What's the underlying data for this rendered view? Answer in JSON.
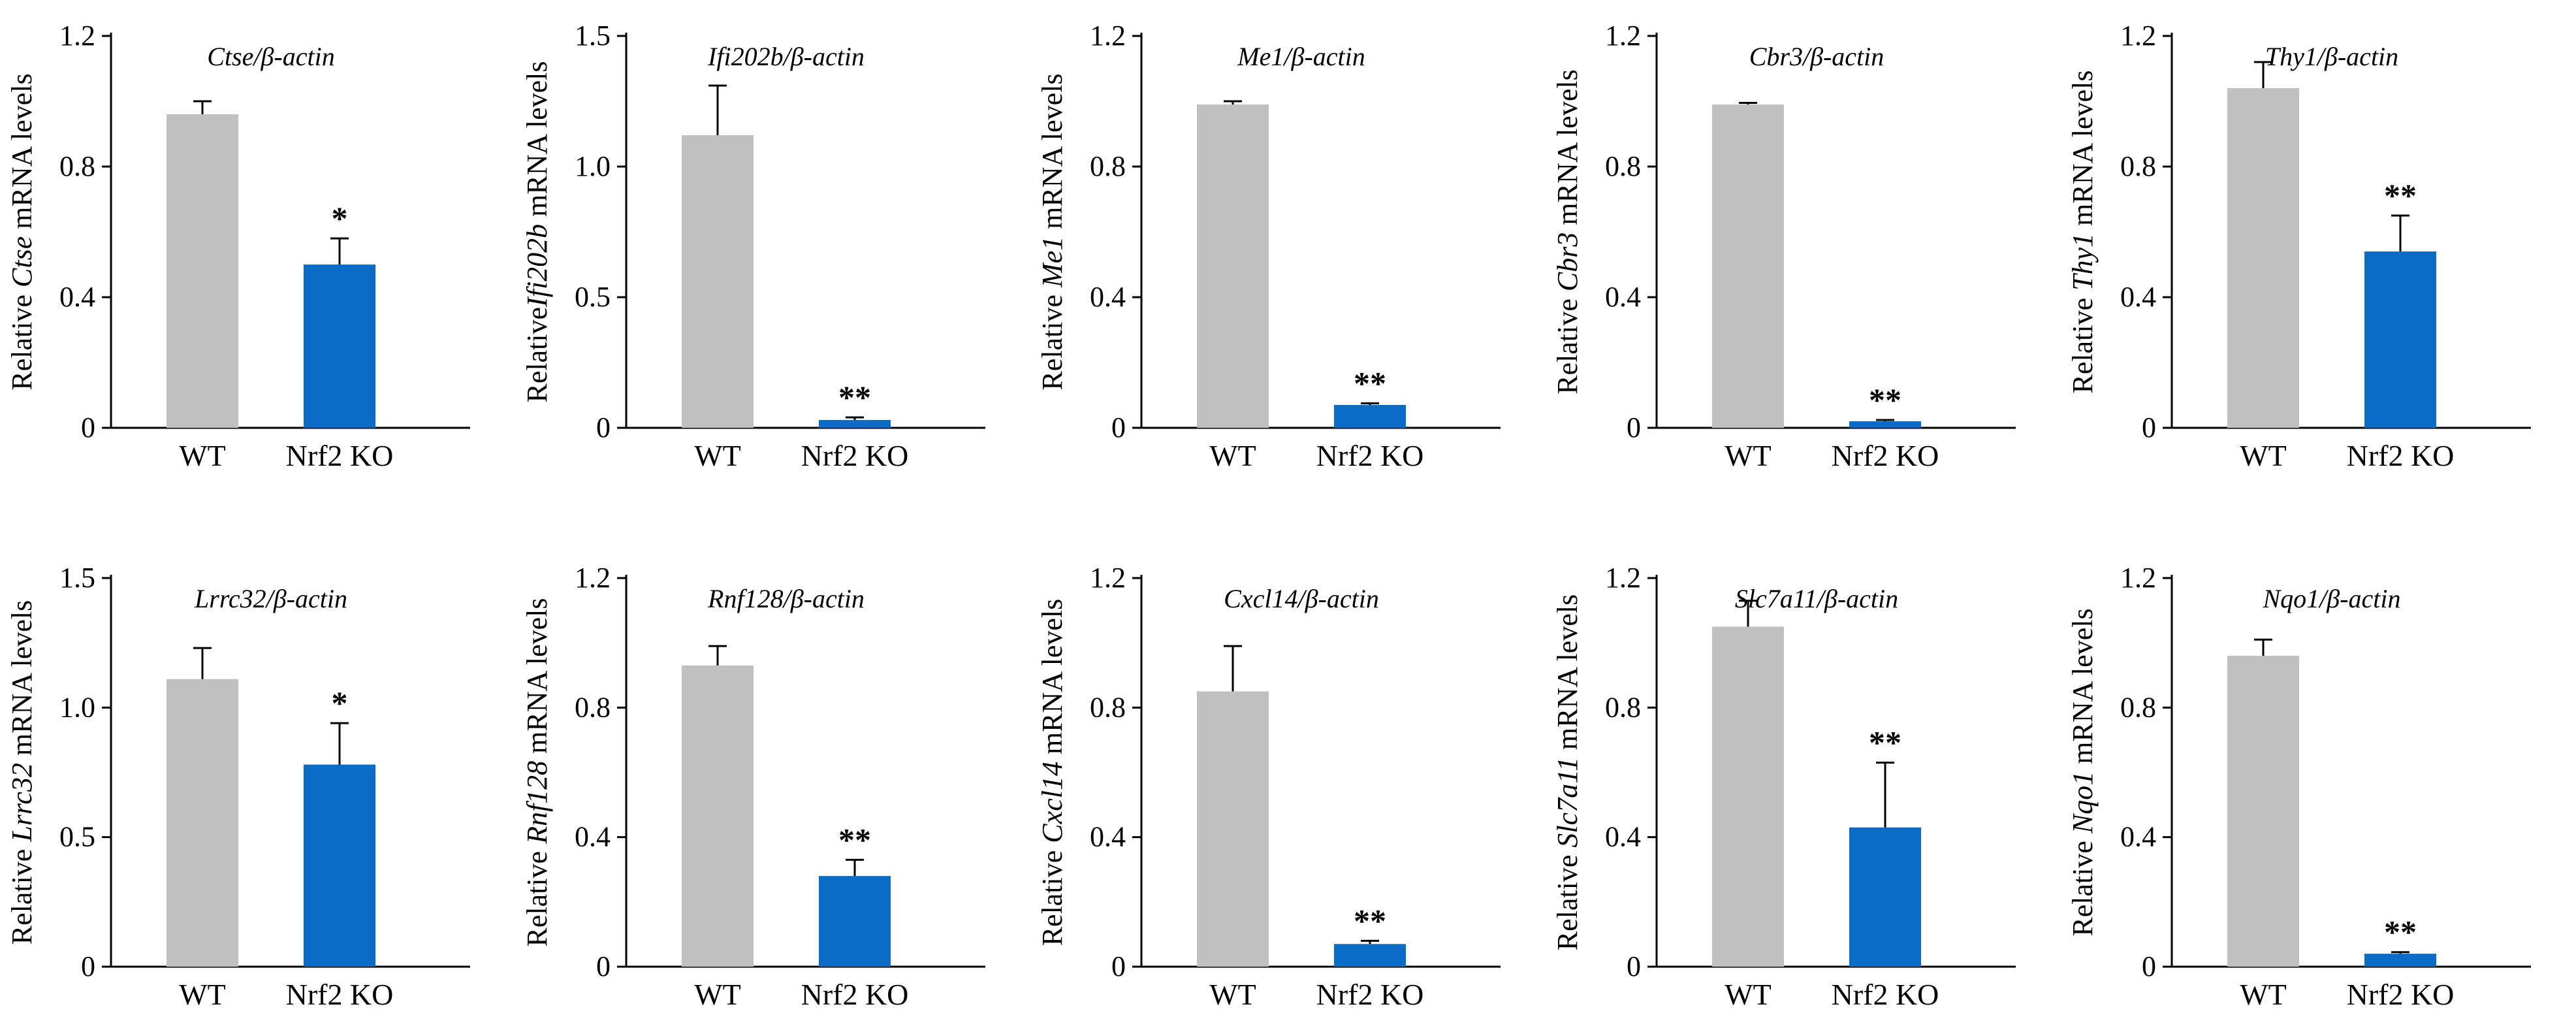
{
  "figure": {
    "colors": {
      "wt": "#c0c0c0",
      "ko": "#0a6cc4",
      "axis": "#000000"
    },
    "charts_grid": {
      "rows": 2,
      "cols": 5
    }
  },
  "chart_data": [
    {
      "type": "bar",
      "title_gene": "Ctse",
      "title_suffix": "/β-actin",
      "ylabel_prefix": "Relative ",
      "ylabel_gene": "Ctse",
      "ylabel_suffix": " mRNA levels",
      "categories": [
        "WT",
        "Nrf2 KO"
      ],
      "values": [
        0.96,
        0.5
      ],
      "errors": [
        0.04,
        0.08
      ],
      "significance": [
        "",
        "*"
      ],
      "ylim": [
        0,
        1.2
      ],
      "yticks": [
        0,
        0.4,
        0.8,
        1.2
      ],
      "ytick_labels": [
        "0",
        "0.4",
        "0.8",
        "1.2"
      ]
    },
    {
      "type": "bar",
      "title_gene": "Ifi202b",
      "title_suffix": "/β-actin",
      "ylabel_prefix": "Relative",
      "ylabel_gene": "Ifi202b",
      "ylabel_suffix": " mRNA levels",
      "categories": [
        "WT",
        "Nrf2 KO"
      ],
      "values": [
        1.12,
        0.03
      ],
      "errors": [
        0.19,
        0.01
      ],
      "significance": [
        "",
        "**"
      ],
      "ylim": [
        0,
        1.5
      ],
      "yticks": [
        0,
        0.5,
        1.0,
        1.5
      ],
      "ytick_labels": [
        "0",
        "0.5",
        "1.0",
        "1.5"
      ]
    },
    {
      "type": "bar",
      "title_gene": "Me1",
      "title_suffix": "/β-actin",
      "ylabel_prefix": "Relative ",
      "ylabel_gene": "Me1",
      "ylabel_suffix": " mRNA levels",
      "categories": [
        "WT",
        "Nrf2 KO"
      ],
      "values": [
        0.99,
        0.07
      ],
      "errors": [
        0.01,
        0.005
      ],
      "significance": [
        "",
        "**"
      ],
      "ylim": [
        0,
        1.2
      ],
      "yticks": [
        0,
        0.4,
        0.8,
        1.2
      ],
      "ytick_labels": [
        "0",
        "0.4",
        "0.8",
        "1.2"
      ]
    },
    {
      "type": "bar",
      "title_gene": "Cbr3",
      "title_suffix": "/β-actin",
      "ylabel_prefix": "Relative ",
      "ylabel_gene": "Cbr3",
      "ylabel_suffix": " mRNA levels",
      "categories": [
        "WT",
        "Nrf2 KO"
      ],
      "values": [
        0.99,
        0.02
      ],
      "errors": [
        0.005,
        0.004
      ],
      "significance": [
        "",
        "**"
      ],
      "ylim": [
        0,
        1.2
      ],
      "yticks": [
        0,
        0.4,
        0.8,
        1.2
      ],
      "ytick_labels": [
        "0",
        "0.4",
        "0.8",
        "1.2"
      ]
    },
    {
      "type": "bar",
      "title_gene": "Thy1",
      "title_suffix": "/β-actin",
      "ylabel_prefix": "Relative ",
      "ylabel_gene": "Thy1",
      "ylabel_suffix": " mRNA levels",
      "categories": [
        "WT",
        "Nrf2 KO"
      ],
      "values": [
        1.04,
        0.54
      ],
      "errors": [
        0.08,
        0.11
      ],
      "significance": [
        "",
        "**"
      ],
      "ylim": [
        0,
        1.2
      ],
      "yticks": [
        0,
        0.4,
        0.8,
        1.2
      ],
      "ytick_labels": [
        "0",
        "0.4",
        "0.8",
        "1.2"
      ]
    },
    {
      "type": "bar",
      "title_gene": "Lrrc32",
      "title_suffix": "/β-actin",
      "ylabel_prefix": "Relative ",
      "ylabel_gene": "Lrrc32",
      "ylabel_suffix": " mRNA levels",
      "categories": [
        "WT",
        "Nrf2 KO"
      ],
      "values": [
        1.11,
        0.78
      ],
      "errors": [
        0.12,
        0.16
      ],
      "significance": [
        "",
        "*"
      ],
      "ylim": [
        0,
        1.5
      ],
      "yticks": [
        0,
        0.5,
        1.0,
        1.5
      ],
      "ytick_labels": [
        "0",
        "0.5",
        "1.0",
        "1.5"
      ]
    },
    {
      "type": "bar",
      "title_gene": "Rnf128",
      "title_suffix": "/β-actin",
      "ylabel_prefix": "Relative ",
      "ylabel_gene": "Rnf128",
      "ylabel_suffix": " mRNA levels",
      "categories": [
        "WT",
        "Nrf2 KO"
      ],
      "values": [
        0.93,
        0.28
      ],
      "errors": [
        0.06,
        0.05
      ],
      "significance": [
        "",
        "**"
      ],
      "ylim": [
        0,
        1.2
      ],
      "yticks": [
        0,
        0.4,
        0.8,
        1.2
      ],
      "ytick_labels": [
        "0",
        "0.4",
        "0.8",
        "1.2"
      ]
    },
    {
      "type": "bar",
      "title_gene": "Cxcl14",
      "title_suffix": "/β-actin",
      "ylabel_prefix": "Relative ",
      "ylabel_gene": "Cxcl14",
      "ylabel_suffix": " mRNA levels",
      "categories": [
        "WT",
        "Nrf2 KO"
      ],
      "values": [
        0.85,
        0.07
      ],
      "errors": [
        0.14,
        0.01
      ],
      "significance": [
        "",
        "**"
      ],
      "ylim": [
        0,
        1.2
      ],
      "yticks": [
        0,
        0.4,
        0.8,
        1.2
      ],
      "ytick_labels": [
        "0",
        "0.4",
        "0.8",
        "1.2"
      ]
    },
    {
      "type": "bar",
      "title_gene": "Slc7a11",
      "title_suffix": "/β-actin",
      "ylabel_prefix": "Relative ",
      "ylabel_gene": "Slc7a11",
      "ylabel_suffix": " mRNA levels",
      "categories": [
        "WT",
        "Nrf2 KO"
      ],
      "values": [
        1.05,
        0.43
      ],
      "errors": [
        0.08,
        0.2
      ],
      "significance": [
        "",
        "**"
      ],
      "ylim": [
        0,
        1.2
      ],
      "yticks": [
        0,
        0.4,
        0.8,
        1.2
      ],
      "ytick_labels": [
        "0",
        "0.4",
        "0.8",
        "1.2"
      ]
    },
    {
      "type": "bar",
      "title_gene": "Nqo1",
      "title_suffix": "/β-actin",
      "ylabel_prefix": "Relative ",
      "ylabel_gene": "Nqo1",
      "ylabel_suffix": " mRNA levels",
      "categories": [
        "WT",
        "Nrf2 KO"
      ],
      "values": [
        0.96,
        0.04
      ],
      "errors": [
        0.05,
        0.005
      ],
      "significance": [
        "",
        "**"
      ],
      "ylim": [
        0,
        1.2
      ],
      "yticks": [
        0,
        0.4,
        0.8,
        1.2
      ],
      "ytick_labels": [
        "0",
        "0.4",
        "0.8",
        "1.2"
      ]
    }
  ]
}
